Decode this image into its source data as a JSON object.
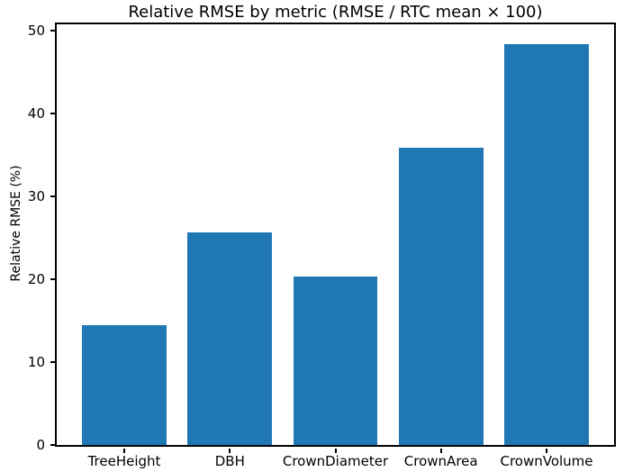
{
  "chart_data": {
    "type": "bar",
    "title": "Relative RMSE by metric (RMSE / RTC mean × 100)",
    "ylabel": "Relative RMSE (%)",
    "xlabel": "",
    "categories": [
      "TreeHeight",
      "DBH",
      "CrownDiameter",
      "CrownArea",
      "CrownVolume"
    ],
    "values": [
      14.5,
      25.7,
      20.4,
      35.9,
      48.4
    ],
    "yticks": [
      0,
      10,
      20,
      30,
      40,
      50
    ],
    "ylim": [
      0,
      50.8
    ],
    "bar_color": "#1f77b4",
    "axis_color": "#000000",
    "text_color": "#000000",
    "background_color": "#ffffff",
    "grid": false,
    "legend": "none"
  }
}
